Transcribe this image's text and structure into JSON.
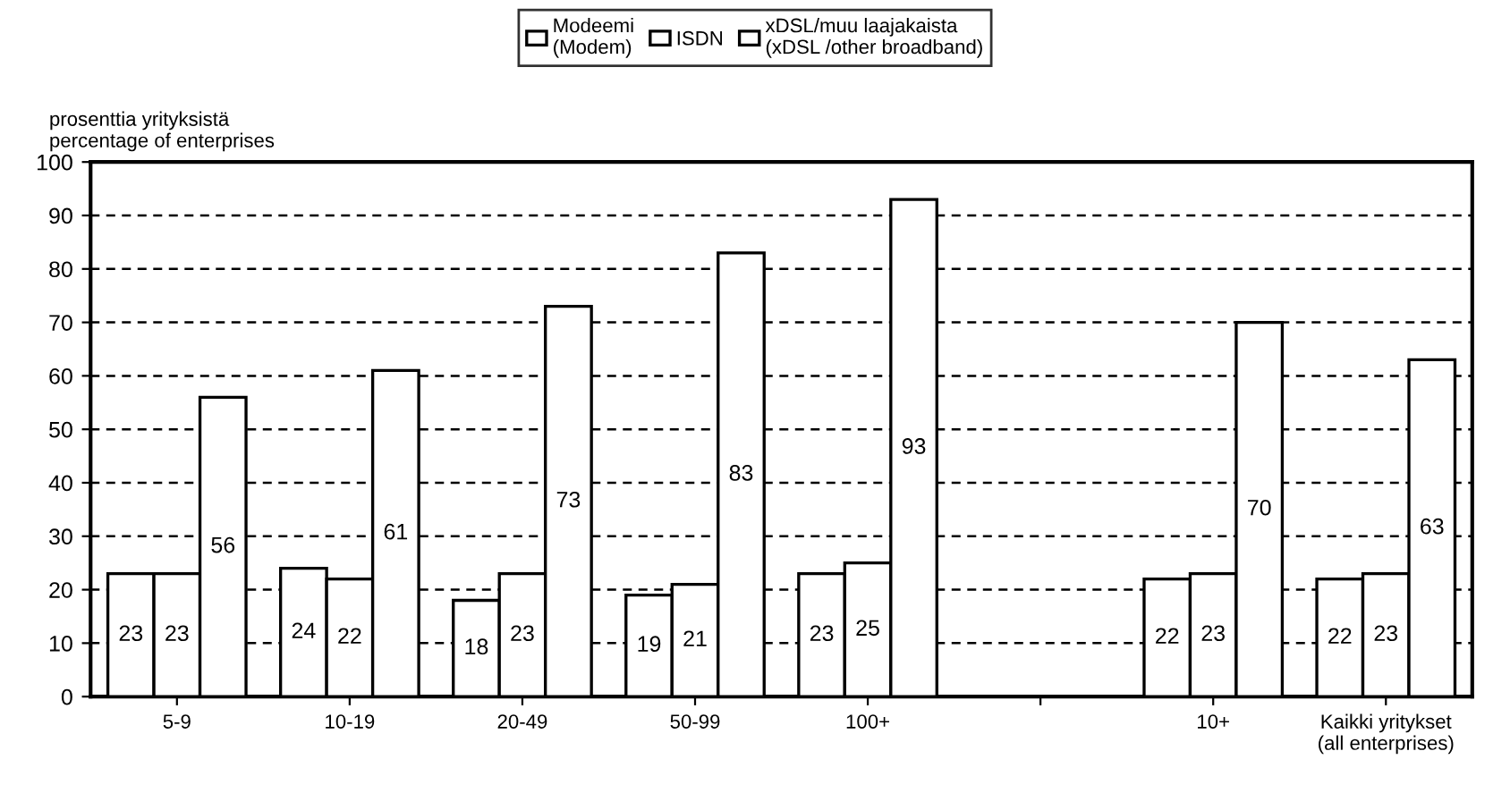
{
  "chart_data": {
    "type": "bar",
    "ylabel": "prosenttia yrityksistä\npercentage of enterprises",
    "categories": [
      "5-9",
      "10-19",
      "20-49",
      "50-99",
      "100+",
      null,
      "10+",
      "Kaikki yritykset\n(all enterprises)"
    ],
    "series": [
      {
        "name": "Modeemi\n(Modem)",
        "color": "#ffffff",
        "values": [
          23,
          24,
          18,
          19,
          23,
          null,
          22,
          22
        ]
      },
      {
        "name": "ISDN",
        "color": "#ffffff",
        "values": [
          23,
          22,
          23,
          21,
          25,
          null,
          23,
          23
        ]
      },
      {
        "name": "xDSL/muu laajakaista\n(xDSL /other broadband)",
        "color": "#ffffff",
        "values": [
          56,
          61,
          73,
          83,
          93,
          null,
          70,
          63
        ]
      }
    ],
    "ylim": [
      0,
      100
    ],
    "yticks": [
      0,
      10,
      20,
      30,
      40,
      50,
      60,
      70,
      80,
      90,
      100
    ],
    "grid": "y",
    "legend": "top",
    "data_labels": true
  }
}
